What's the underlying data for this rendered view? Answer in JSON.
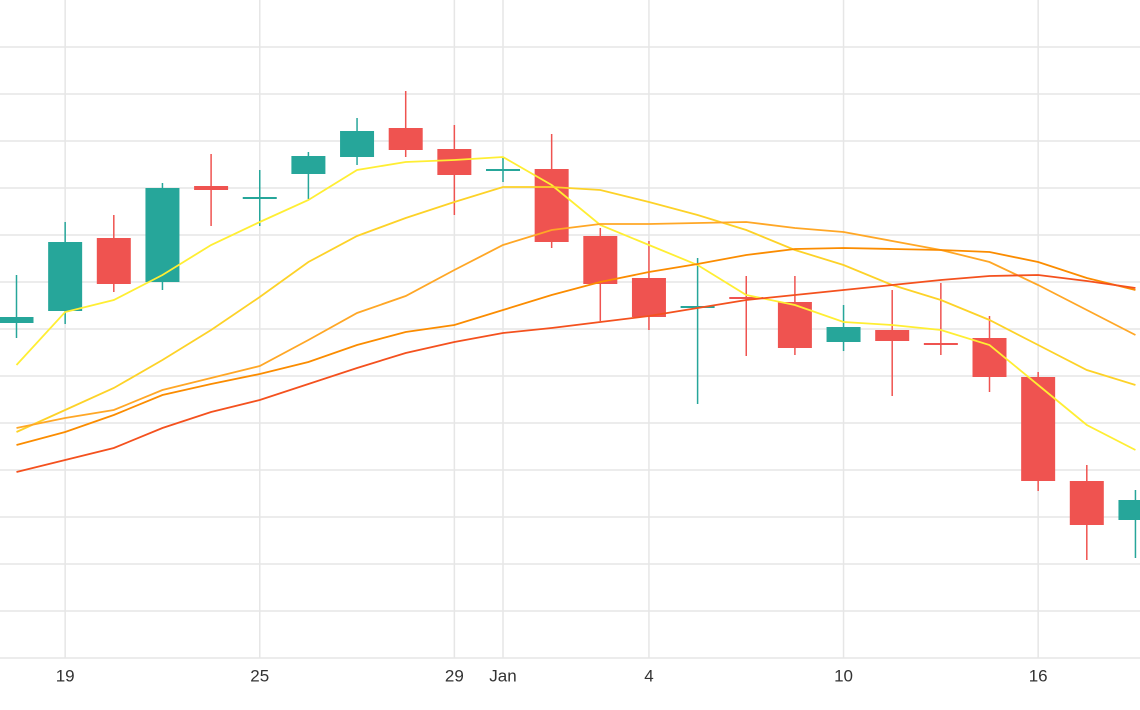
{
  "chart_data": {
    "type": "candlestick",
    "categories": [
      null,
      "19",
      null,
      null,
      null,
      "25",
      null,
      null,
      null,
      "29",
      "Jan",
      null,
      null,
      "4",
      null,
      null,
      null,
      "10",
      null,
      null,
      null,
      "16",
      null,
      null
    ],
    "open": [
      335,
      347,
      420,
      376,
      472,
      459,
      484,
      501,
      530,
      509,
      487,
      489,
      422,
      380,
      350,
      361,
      356,
      316,
      328,
      315,
      320,
      281,
      177,
      138
    ],
    "high": [
      383,
      436,
      443,
      475,
      504,
      488,
      506,
      540,
      567,
      533,
      501,
      524,
      430,
      417,
      400,
      382,
      382,
      353,
      368,
      375,
      342,
      286,
      193,
      168
    ],
    "low": [
      320,
      334,
      366,
      368,
      432,
      432,
      459,
      493,
      501,
      443,
      476,
      410,
      337,
      328,
      254,
      302,
      303,
      307,
      262,
      303,
      266,
      167,
      98,
      100
    ],
    "close": [
      341,
      416,
      374,
      470,
      468,
      461,
      502,
      527,
      508,
      483,
      489,
      416,
      374,
      341,
      352,
      359,
      310,
      331,
      317,
      314,
      281,
      177,
      133,
      158
    ],
    "up_color": "#26a69a",
    "down_color": "#ef5350",
    "lines": [
      {
        "color": "#ffee33",
        "values": [
          293,
          346,
          358,
          383,
          413,
          436,
          458,
          488,
          496,
          498,
          501,
          473,
          433,
          413,
          393,
          363,
          353,
          336,
          333,
          328,
          313,
          273,
          233,
          208
        ]
      },
      {
        "color": "#fdd228",
        "values": [
          226,
          248,
          270,
          298,
          328,
          361,
          396,
          422,
          440,
          456,
          471,
          471,
          468,
          456,
          443,
          428,
          408,
          393,
          373,
          358,
          338,
          313,
          288,
          273
        ]
      },
      {
        "color": "#ffa726",
        "values": [
          230,
          240,
          248,
          268,
          280,
          292,
          318,
          345,
          362,
          388,
          413,
          428,
          434,
          434,
          435,
          436,
          430,
          426,
          417,
          408,
          396,
          373,
          348,
          323
        ]
      },
      {
        "color": "#fb8c00",
        "values": [
          213,
          226,
          243,
          263,
          274,
          284,
          296,
          313,
          326,
          333,
          348,
          363,
          376,
          386,
          394,
          403,
          409,
          410,
          409,
          408,
          406,
          396,
          380,
          368
        ]
      },
      {
        "color": "#f4511e",
        "values": [
          186,
          198,
          210,
          230,
          246,
          258,
          274,
          290,
          305,
          316,
          325,
          330,
          336,
          342,
          350,
          358,
          363,
          368,
          373,
          378,
          382,
          383,
          377,
          370
        ]
      }
    ],
    "ylim": [
      0,
      658
    ],
    "yticks": [
      0,
      47,
      94,
      141,
      188,
      235,
      282,
      329,
      376,
      423,
      470,
      517,
      564,
      611
    ],
    "grid": true
  }
}
